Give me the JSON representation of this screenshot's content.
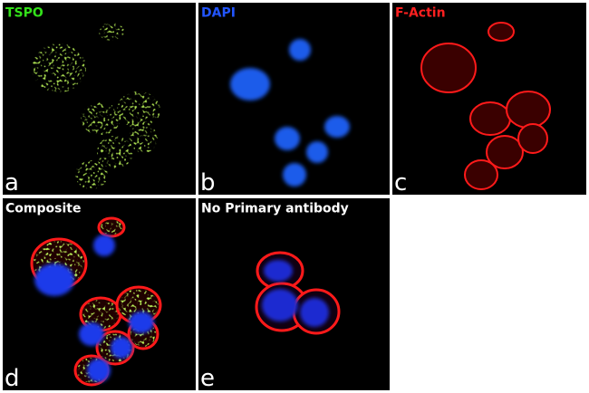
{
  "panels": [
    {
      "label": "TSPO",
      "letter": "a"
    },
    {
      "label": "DAPI",
      "letter": "b"
    },
    {
      "label": "F-Actin",
      "letter": "c"
    },
    {
      "label": "Composite",
      "letter": "d"
    },
    {
      "label": "No Primary antibody",
      "letter": "e"
    }
  ]
}
